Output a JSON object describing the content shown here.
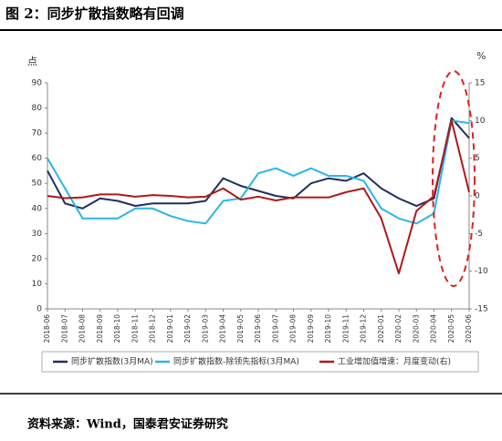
{
  "chart_data": {
    "type": "line",
    "title": "图 2：同步扩散指数略有回调",
    "source": "资料来源：Wind，国泰君安证券研究",
    "ylabel": "点",
    "y2label": "%",
    "categories": [
      "2018-06",
      "2018-07",
      "2018-08",
      "2018-09",
      "2018-10",
      "2018-11",
      "2018-12",
      "2019-01",
      "2019-02",
      "2019-03",
      "2019-04",
      "2019-05",
      "2019-06",
      "2019-07",
      "2019-08",
      "2019-09",
      "2019-10",
      "2019-11",
      "2019-12",
      "2020-01",
      "2020-02",
      "2020-03",
      "2020-04",
      "2020-05",
      "2020-06"
    ],
    "series": [
      {
        "name": "同步扩散指数(3月MA)",
        "color": "#1f2f5e",
        "axis": "y",
        "values": [
          55,
          42,
          40,
          44,
          43,
          41,
          42,
          42,
          42,
          43,
          52,
          49,
          47,
          45,
          44,
          50,
          52,
          51,
          54,
          48,
          44,
          41,
          44,
          76,
          68
        ]
      },
      {
        "name": "同步扩散指数-除领先指标(3月MA)",
        "color": "#29b6e8",
        "axis": "y",
        "values": [
          60,
          48,
          36,
          36,
          36,
          40,
          40,
          37,
          35,
          34,
          43,
          44,
          54,
          56,
          53,
          56,
          53,
          53,
          51,
          40,
          36,
          34,
          38,
          75,
          74
        ]
      },
      {
        "name": "工业增加值增速：月度变动(右)",
        "color": "#b01818",
        "axis": "y2",
        "values": [
          0,
          -0.3,
          -0.2,
          0.2,
          0.2,
          -0.1,
          0.1,
          0,
          -0.2,
          -0.1,
          1,
          -0.5,
          -0.1,
          -0.6,
          -0.2,
          -0.2,
          -0.2,
          0.5,
          1,
          -3,
          -10.3,
          -2,
          0,
          10,
          0.5
        ]
      }
    ],
    "ylim": [
      0,
      90
    ],
    "yticks": [
      0,
      10,
      20,
      30,
      40,
      50,
      60,
      70,
      80,
      90
    ],
    "y2lim": [
      -15,
      15
    ],
    "y2ticks": [
      -15,
      -10,
      -5,
      0,
      5,
      10,
      15
    ]
  }
}
